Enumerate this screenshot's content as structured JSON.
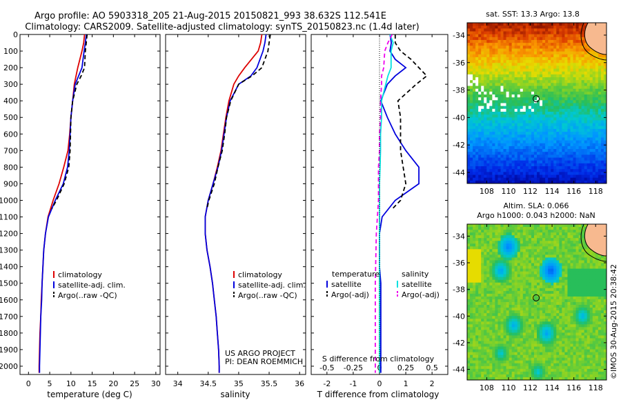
{
  "title_line1": "Argo profile: AO 5903318_205 21-Aug-2015 20150821_993 38.632S 112.541E",
  "title_line2": "Climatology: CARS2009. Satellite-adjusted climatology: synTS_20150823.nc (1.4d later)",
  "sst_title": "sat. SST: 13.3 Argo: 13.8",
  "sla_title1": "Altim. SLA: 0.066",
  "sla_title2": "Argo h1000: 0.043 h2000: NaN",
  "credit": "©IMOS 30-Aug-2015 20:38:42",
  "project_line1": "US ARGO PROJECT",
  "project_line2": "PI: DEAN ROEMMICH",
  "colors": {
    "climatology": "#dd0000",
    "satellite": "#0000dd",
    "argo": "#000000",
    "sat_salinity": "#00e0e0",
    "argo_salinity_adj": "#ee00ee",
    "land": "#f7b98f"
  },
  "chart_data": [
    {
      "type": "line",
      "xlabel": "temperature (deg C)",
      "xlim": [
        -2,
        31
      ],
      "ylim": [
        0,
        2050
      ],
      "x_ticks": [
        0,
        5,
        10,
        15,
        20,
        25,
        30
      ],
      "y_ticks": [
        0,
        100,
        200,
        300,
        400,
        500,
        600,
        700,
        800,
        900,
        1000,
        1100,
        1200,
        1300,
        1400,
        1500,
        1600,
        1700,
        1800,
        1900,
        2000
      ],
      "legend": [
        "climatology",
        "satellite-adj. clim.",
        "Argo(..raw -QC)"
      ],
      "legend_position": "lower-center",
      "series": [
        {
          "name": "climatology",
          "depth": [
            0,
            50,
            100,
            200,
            250,
            300,
            400,
            500,
            600,
            700,
            800,
            900,
            1000,
            1100,
            1200,
            1300,
            1400,
            1500,
            1600,
            1700,
            1800,
            1900,
            2000,
            2040
          ],
          "values": [
            13.2,
            13.0,
            12.6,
            11.6,
            11.2,
            10.8,
            10.4,
            10.0,
            9.7,
            9.3,
            8.3,
            7.2,
            5.8,
            4.6,
            4.0,
            3.6,
            3.4,
            3.2,
            3.0,
            2.9,
            2.7,
            2.6,
            2.5,
            2.5
          ]
        },
        {
          "name": "satellite-adj. clim.",
          "depth": [
            0,
            50,
            100,
            200,
            250,
            300,
            400,
            500,
            600,
            700,
            800,
            900,
            1000,
            1100,
            1200,
            1300,
            1400,
            1500,
            1600,
            1700,
            1800,
            1900,
            2000,
            2040
          ],
          "values": [
            13.6,
            13.4,
            13.1,
            12.6,
            11.8,
            11.0,
            10.4,
            10.0,
            9.8,
            9.6,
            9.2,
            8.2,
            6.3,
            4.7,
            4.0,
            3.6,
            3.4,
            3.2,
            3.1,
            2.9,
            2.8,
            2.7,
            2.6,
            2.6
          ]
        },
        {
          "name": "Argo(..raw -QC)",
          "depth": [
            0,
            50,
            100,
            200,
            250,
            300,
            400,
            500,
            600,
            700,
            800,
            900,
            1000,
            1050
          ],
          "values": [
            13.8,
            13.6,
            13.4,
            13.2,
            12.4,
            11.4,
            10.4,
            10.0,
            9.9,
            9.8,
            9.5,
            8.4,
            6.6,
            5.5
          ]
        }
      ]
    },
    {
      "type": "line",
      "xlabel": "salinity",
      "xlim": [
        33.8,
        36.1
      ],
      "ylim": [
        0,
        2050
      ],
      "x_ticks": [
        34,
        34.5,
        35,
        35.5,
        36
      ],
      "legend": [
        "climatology",
        "satellite-adj. clim.",
        "Argo(..raw -QC)"
      ],
      "legend_position": "lower-right",
      "series": [
        {
          "name": "climatology",
          "depth": [
            0,
            50,
            100,
            200,
            250,
            300,
            400,
            500,
            600,
            700,
            800,
            900,
            1000,
            1100,
            1200,
            1300,
            1400,
            1500,
            1600,
            1700,
            1800,
            1900,
            2000,
            2040
          ],
          "values": [
            35.38,
            35.36,
            35.32,
            35.1,
            35.0,
            34.92,
            34.84,
            34.79,
            34.75,
            34.71,
            34.65,
            34.58,
            34.5,
            34.45,
            34.45,
            34.48,
            34.53,
            34.57,
            34.6,
            34.63,
            34.65,
            34.67,
            34.68,
            34.68
          ]
        },
        {
          "name": "satellite-adj. clim.",
          "depth": [
            0,
            50,
            100,
            200,
            250,
            300,
            400,
            500,
            600,
            700,
            800,
            900,
            1000,
            1100,
            1200,
            1300,
            1400,
            1500,
            1600,
            1700,
            1800,
            1900,
            2000,
            2040
          ],
          "values": [
            35.45,
            35.43,
            35.4,
            35.3,
            35.2,
            35.0,
            34.86,
            34.8,
            34.76,
            34.72,
            34.66,
            34.58,
            34.5,
            34.45,
            34.45,
            34.48,
            34.53,
            34.57,
            34.6,
            34.63,
            34.65,
            34.67,
            34.68,
            34.68
          ]
        },
        {
          "name": "Argo(..raw -QC)",
          "depth": [
            0,
            50,
            100,
            200,
            250,
            300,
            400,
            500,
            600,
            700,
            800,
            900,
            1000,
            1050
          ],
          "values": [
            35.52,
            35.5,
            35.48,
            35.38,
            35.22,
            35.0,
            34.87,
            34.8,
            34.77,
            34.73,
            34.66,
            34.6,
            34.51,
            34.48
          ]
        }
      ]
    },
    {
      "type": "line",
      "xlabel": "T difference from climatology",
      "xlabel2": "S difference from climatology",
      "xlim": [
        -2.6,
        2.6
      ],
      "ylim": [
        0,
        2050
      ],
      "x_ticks": [
        -2,
        -1,
        0,
        1,
        2
      ],
      "s_ticks": [
        -0.5,
        -0.25,
        0,
        0.25,
        0.5
      ],
      "legend_title_t": "temperature",
      "legend_title_s": "salinity",
      "legend": [
        "satellite",
        "Argo(-adj)",
        "satellite",
        "Argo(-adj)"
      ],
      "legend_position": "lower-center",
      "series": [
        {
          "name": "satellite",
          "depth": [
            0,
            50,
            100,
            150,
            200,
            250,
            300,
            400,
            500,
            600,
            700,
            800,
            900,
            1000,
            1100,
            1200,
            1300,
            1400,
            1500,
            1700,
            1900,
            2040
          ],
          "values": [
            0.4,
            0.45,
            0.4,
            0.6,
            1.0,
            0.6,
            0.3,
            0.05,
            0.3,
            0.6,
            1.0,
            1.5,
            1.5,
            0.6,
            0.1,
            0.0,
            0.0,
            0.0,
            0.05,
            0.05,
            0.05,
            0.05
          ]
        },
        {
          "name": "Argo(-adj)",
          "depth": [
            0,
            50,
            100,
            150,
            200,
            250,
            300,
            400,
            500,
            600,
            700,
            800,
            900,
            1000,
            1050
          ],
          "values": [
            0.6,
            0.6,
            0.8,
            1.2,
            1.5,
            1.8,
            1.4,
            0.7,
            0.8,
            0.8,
            0.8,
            0.9,
            1.0,
            0.8,
            0.5
          ]
        },
        {
          "name": "satellite (salinity)",
          "depth": [
            0,
            50,
            100,
            200,
            250,
            300,
            400,
            500,
            600,
            700,
            800,
            900,
            1000,
            1100,
            1200,
            1300,
            1400,
            1500,
            1700,
            1900,
            2040
          ],
          "values": [
            0.1,
            0.13,
            0.11,
            0.11,
            0.08,
            0.06,
            0.02,
            0.02,
            0.01,
            0.01,
            0.005,
            0.0,
            0.0,
            0.0,
            0.0,
            0.0,
            0.0,
            0.0,
            0.0,
            0.0,
            0.0
          ]
        },
        {
          "name": "Argo(-adj) (salinity)",
          "depth": [
            0,
            50,
            100,
            200,
            250,
            300,
            400,
            500,
            600,
            700,
            800,
            900,
            1000,
            1200,
            1500,
            1900,
            2040
          ],
          "values": [
            0.12,
            0.08,
            0.05,
            0.04,
            0.02,
            0.02,
            0.01,
            0.01,
            0.0,
            0.0,
            -0.01,
            -0.01,
            -0.01,
            -0.03,
            -0.04,
            -0.04,
            -0.04
          ]
        }
      ]
    },
    {
      "type": "heatmap",
      "title": "sat. SST: 13.3 Argo: 13.8",
      "x_ticks": [
        108,
        110,
        112,
        114,
        116,
        118
      ],
      "y_ticks": [
        -34,
        -36,
        -38,
        -40,
        -42,
        -44
      ],
      "xlim": [
        106.2,
        119
      ],
      "ylim": [
        -44.8,
        -33.1
      ],
      "argo_position": [
        112.541,
        -38.632
      ]
    },
    {
      "type": "heatmap",
      "title": "Altim. SLA: 0.066",
      "x_ticks": [
        108,
        110,
        112,
        114,
        116,
        118
      ],
      "y_ticks": [
        -34,
        -36,
        -38,
        -40,
        -42,
        -44
      ],
      "xlim": [
        106.2,
        119
      ],
      "ylim": [
        -44.8,
        -33.1
      ],
      "argo_position": [
        112.541,
        -38.632
      ]
    }
  ]
}
